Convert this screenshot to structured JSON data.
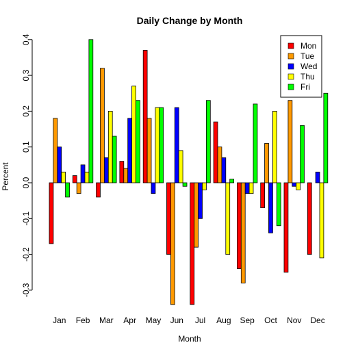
{
  "chart_data": {
    "type": "bar",
    "title": "Daily Change by Month",
    "xlabel": "Month",
    "ylabel": "Percent",
    "categories": [
      "Jan",
      "Feb",
      "Mar",
      "Apr",
      "May",
      "Jun",
      "Jul",
      "Aug",
      "Sep",
      "Oct",
      "Nov",
      "Dec"
    ],
    "ylim": [
      -0.3,
      0.4
    ],
    "yticks": [
      "-0.3",
      "-0.2",
      "-0.1",
      "0.0",
      "0.1",
      "0.2",
      "0.3",
      "0.4"
    ],
    "legend_position": "top-right",
    "series": [
      {
        "name": "Mon",
        "color": "#ff0000",
        "values": [
          -0.17,
          0.02,
          -0.04,
          0.06,
          0.37,
          -0.2,
          -0.34,
          0.17,
          -0.24,
          -0.07,
          -0.25,
          -0.2
        ]
      },
      {
        "name": "Tue",
        "color": "#ff9900",
        "values": [
          0.18,
          -0.03,
          0.32,
          0.04,
          0.18,
          -0.34,
          -0.18,
          0.1,
          -0.28,
          0.11,
          0.23,
          0.0
        ]
      },
      {
        "name": "Wed",
        "color": "#0000ff",
        "values": [
          0.1,
          0.05,
          0.07,
          0.18,
          -0.03,
          0.21,
          -0.1,
          0.07,
          -0.03,
          -0.14,
          -0.01,
          0.03
        ]
      },
      {
        "name": "Thu",
        "color": "#ffff00",
        "values": [
          0.03,
          0.03,
          0.2,
          0.27,
          0.21,
          0.09,
          -0.02,
          -0.2,
          -0.03,
          0.2,
          -0.02,
          -0.21
        ]
      },
      {
        "name": "Fri",
        "color": "#00ff00",
        "values": [
          -0.04,
          0.4,
          0.13,
          0.23,
          0.21,
          -0.01,
          0.23,
          0.01,
          0.22,
          -0.12,
          0.16,
          0.25
        ]
      }
    ]
  }
}
